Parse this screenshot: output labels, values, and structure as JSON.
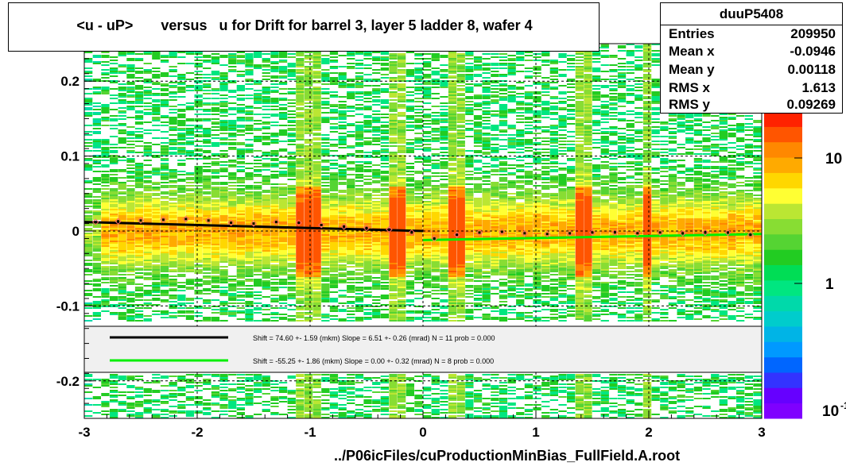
{
  "title": "<u - uP>       versus   u for Drift for barrel 3, layer 5 ladder 8, wafer 4",
  "stats": {
    "name": "duuP5408",
    "rows": [
      {
        "label": "Entries",
        "value": "209950"
      },
      {
        "label": "Mean x",
        "value": "-0.0946"
      },
      {
        "label": "Mean y",
        "value": "0.00118"
      },
      {
        "label": "RMS x",
        "value": "1.613"
      },
      {
        "label": "RMS y",
        "value": "0.09269"
      }
    ]
  },
  "footer": "../P06icFiles/cuProductionMinBias_FullField.A.root",
  "colors": {
    "fit_black": "#000000",
    "fit_green": "#00ee00",
    "profile_marker": "#ff6666",
    "fit_box_bg": "#f0f0f0"
  },
  "chart_data": {
    "type": "heatmap",
    "title": "<u - uP>       versus   u for Drift for barrel 3, layer 5 ladder 8, wafer 4",
    "xlabel": "",
    "ylabel": "",
    "xlim": [
      -3,
      3
    ],
    "ylim": [
      -0.25,
      0.25
    ],
    "x_ticks": [
      -3,
      -2,
      -1,
      0,
      1,
      2,
      3
    ],
    "y_ticks": [
      -0.2,
      -0.1,
      0,
      0.1,
      0.2
    ],
    "x_tick_labels": [
      "-3",
      "-2",
      "-1",
      "0",
      "1",
      "2",
      "3"
    ],
    "y_tick_labels": [
      "-0.2",
      "-0.1",
      "0",
      "0.1",
      "0.2"
    ],
    "grid": true,
    "colorbar": {
      "scale": "log",
      "tick_labels": [
        "1",
        "10"
      ],
      "bottom_label": "10",
      "bottom_label_exponent": "-1",
      "colors": [
        "#7f00ff",
        "#6600ff",
        "#3333ff",
        "#0066ff",
        "#0099ff",
        "#00b4e6",
        "#00cccc",
        "#00d9aa",
        "#00e680",
        "#00dd55",
        "#22cc22",
        "#55d433",
        "#88dd33",
        "#bbe633",
        "#ffff33",
        "#ffd700",
        "#ffaa00",
        "#ff8800",
        "#ff5500",
        "#ff2200"
      ]
    },
    "series": [
      {
        "type": "profile",
        "x": [
          -2.9,
          -2.7,
          -2.5,
          -2.3,
          -2.1,
          -1.9,
          -1.7,
          -1.5,
          -1.3,
          -1.1,
          -0.9,
          -0.7,
          -0.5,
          -0.3,
          -0.1,
          0.1,
          0.3,
          0.5,
          0.7,
          0.9,
          1.1,
          1.3,
          1.5,
          1.7,
          1.9,
          2.1,
          2.3,
          2.5,
          2.7,
          2.9
        ],
        "y": [
          0.012,
          0.013,
          0.014,
          0.015,
          0.016,
          0.014,
          0.011,
          0.01,
          0.012,
          0.011,
          0.008,
          0.006,
          0.004,
          0.002,
          -0.002,
          -0.01,
          -0.005,
          -0.002,
          -0.001,
          -0.003,
          -0.004,
          -0.003,
          -0.002,
          -0.002,
          -0.003,
          -0.002,
          -0.003,
          -0.002,
          -0.002,
          -0.005
        ]
      },
      {
        "type": "fit_black",
        "x": [
          -3,
          0
        ],
        "y": [
          0.012,
          0.0
        ]
      },
      {
        "type": "fit_green",
        "x": [
          0,
          3
        ],
        "y": [
          -0.012,
          -0.004
        ]
      }
    ],
    "fit_legend": [
      {
        "line": "black",
        "text": "Shift =    74.60 +- 1.59 (mkm) Slope =     6.51 +- 0.26 (mrad)  N = 11 prob = 0.000"
      },
      {
        "line": "green",
        "text": "Shift =   -55.25 +- 1.86 (mkm) Slope =     0.00 +- 0.32 (mrad)  N = 8 prob = 0.000"
      }
    ]
  }
}
